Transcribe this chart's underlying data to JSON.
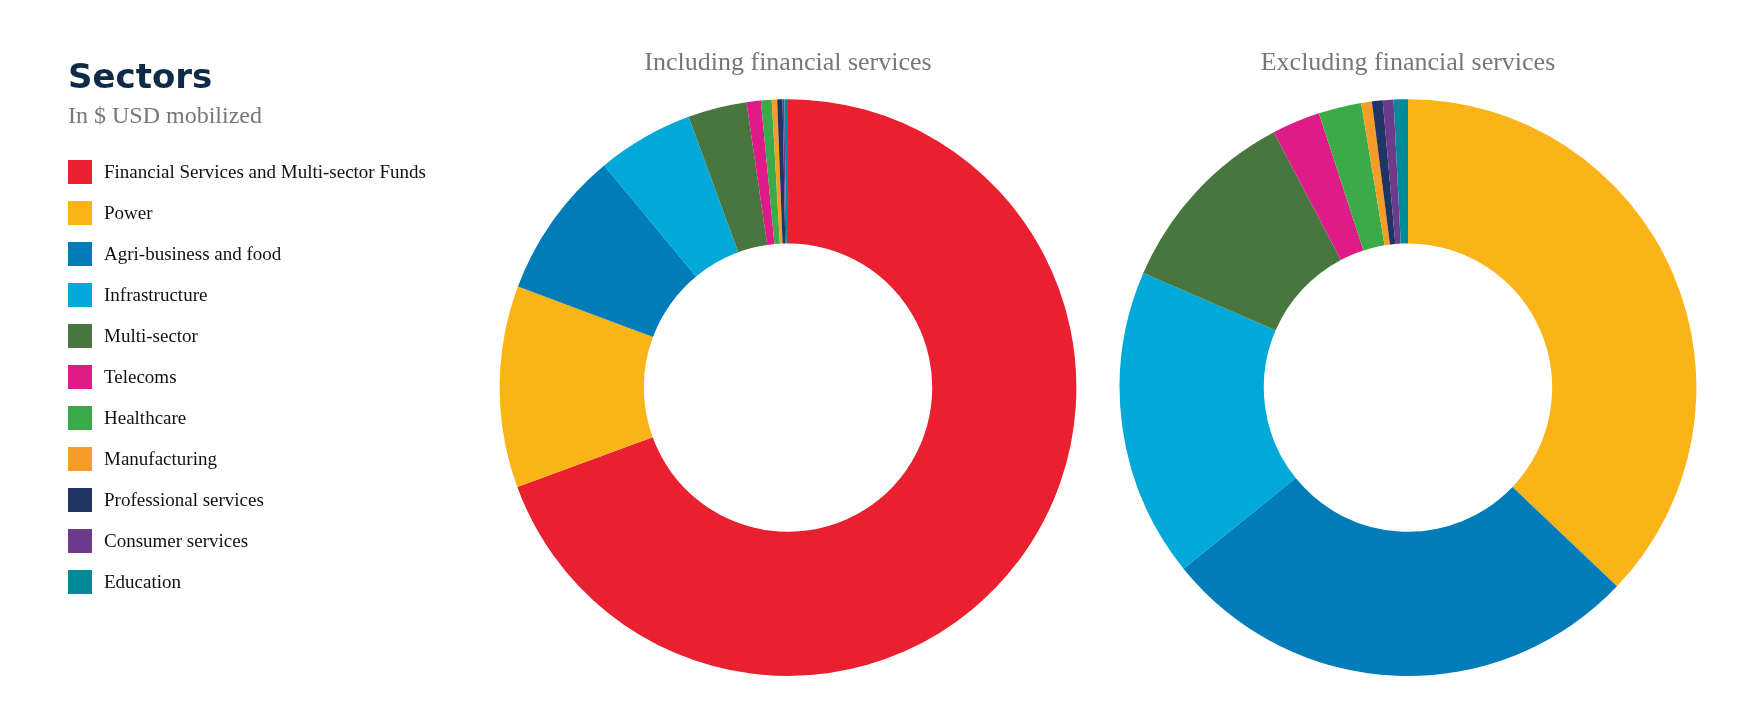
{
  "chart_data": [
    {
      "type": "donut",
      "title": "Including financial services",
      "legend_title": "Sectors",
      "annotations": [
        "In $ USD mobilized"
      ],
      "legend": "left",
      "categories": [
        "Financial Services and Multi-sector Funds",
        "Power",
        "Agri-business and food",
        "Infrastructure",
        "Multi-sector",
        "Telecoms",
        "Healthcare",
        "Manufacturing",
        "Professional services",
        "Consumer services",
        "Education"
      ],
      "values": [
        69.4,
        11.3,
        8.3,
        5.4,
        3.3,
        0.8,
        0.6,
        0.3,
        0.3,
        0.1,
        0.2
      ],
      "colors": [
        "#e8202f",
        "#fab418",
        "#007cb9",
        "#00a9d7",
        "#47773e",
        "#de1b86",
        "#3bab49",
        "#f59d27",
        "#213564",
        "#6d3b8c",
        "#018b99"
      ]
    },
    {
      "type": "donut",
      "title": "Excluding financial services",
      "categories": [
        null,
        null,
        null,
        null,
        null,
        null,
        null,
        null,
        null,
        null
      ],
      "values": [
        37.1,
        27.1,
        17.3,
        10.8,
        2.7,
        2.4,
        0.6,
        0.6,
        0.6,
        0.8
      ],
      "colors": [
        "#fab418",
        "#007cb9",
        "#00a9d7",
        "#47773e",
        "#de1b86",
        "#3bab49",
        "#f59d27",
        "#213564",
        "#6d3b8c",
        "#018b99"
      ]
    }
  ]
}
